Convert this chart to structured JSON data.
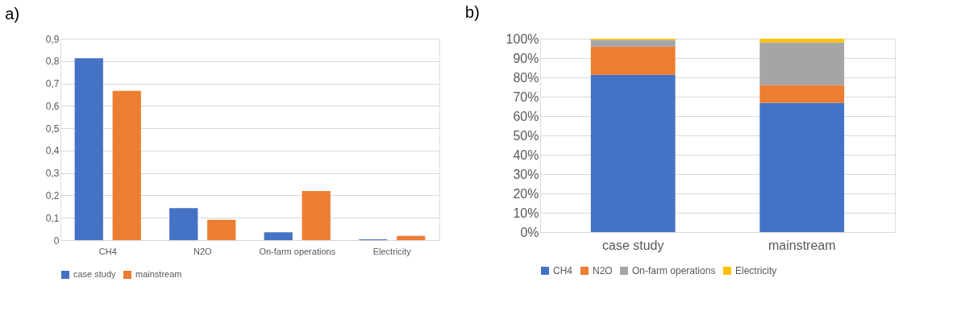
{
  "chart_data": [
    {
      "type": "bar",
      "title": "a)",
      "categories": [
        "CH4",
        "N2O",
        "On-farm operations",
        "Electricity"
      ],
      "series": [
        {
          "name": "case study",
          "color": "#4472c4",
          "values": [
            0.813,
            0.143,
            0.035,
            0.004
          ]
        },
        {
          "name": "mainstream",
          "color": "#ed7d31",
          "values": [
            0.667,
            0.091,
            0.22,
            0.019
          ]
        }
      ],
      "ylim": [
        0,
        0.9
      ],
      "yticks": [
        0,
        {
          "value": 0.1,
          "label": "0,1"
        },
        {
          "value": 0.2,
          "label": "0,2"
        },
        {
          "value": 0.3,
          "label": "0,3"
        },
        {
          "value": 0.4,
          "label": "0,4"
        },
        {
          "value": 0.5,
          "label": "0,5"
        },
        {
          "value": 0.6,
          "label": "0,6"
        },
        {
          "value": 0.7,
          "label": "0,7"
        },
        {
          "value": 0.8,
          "label": "0,8"
        },
        {
          "value": 0.9,
          "label": "0,9"
        }
      ],
      "grid": "y",
      "legend": "bottom"
    },
    {
      "type": "bar",
      "title": "b)",
      "categories": [
        "case study",
        "mainstream"
      ],
      "stacked": true,
      "series": [
        {
          "name": "CH4",
          "color": "#4472c4",
          "values": [
            81.4,
            66.9
          ]
        },
        {
          "name": "N2O",
          "color": "#ed7d31",
          "values": [
            14.5,
            9.1
          ]
        },
        {
          "name": "On-farm operations",
          "color": "#a5a5a5",
          "values": [
            3.5,
            22.1
          ]
        },
        {
          "name": "Electricity",
          "color": "#ffc000",
          "values": [
            0.6,
            1.9
          ]
        }
      ],
      "ylim": [
        0,
        100
      ],
      "yticks": [
        {
          "value": 0,
          "label": "0%"
        },
        {
          "value": 10,
          "label": "10%"
        },
        {
          "value": 20,
          "label": "20%"
        },
        {
          "value": 30,
          "label": "30%"
        },
        {
          "value": 40,
          "label": "40%"
        },
        {
          "value": 50,
          "label": "50%"
        },
        {
          "value": 60,
          "label": "60%"
        },
        {
          "value": 70,
          "label": "70%"
        },
        {
          "value": 80,
          "label": "80%"
        },
        {
          "value": 90,
          "label": "90%"
        },
        {
          "value": 100,
          "label": "100%"
        }
      ],
      "grid": "y",
      "legend": "bottom"
    }
  ]
}
